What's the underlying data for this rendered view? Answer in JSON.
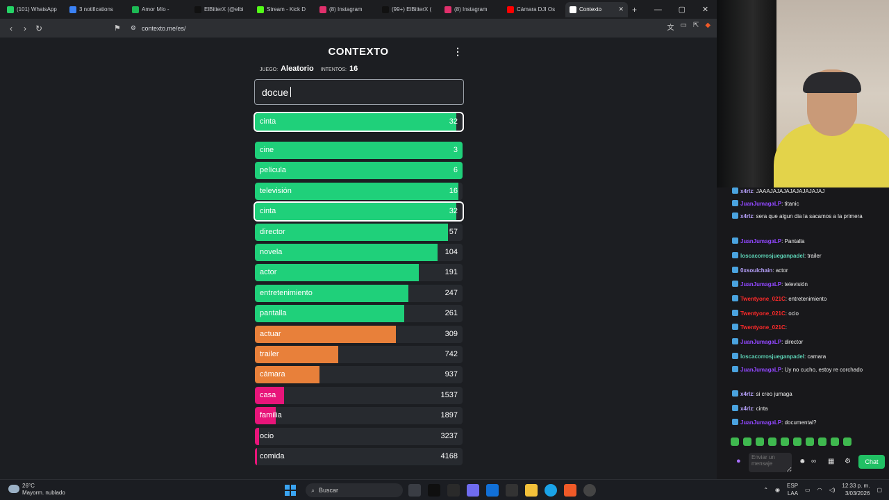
{
  "browser": {
    "tabs": [
      {
        "label": "(101) WhatsApp",
        "color": "#25d366"
      },
      {
        "label": "3 notifications",
        "color": "#3b82f6"
      },
      {
        "label": "Amor Mío -",
        "color": "#1db954"
      },
      {
        "label": "ElBitterX (@elbi",
        "color": "#111111"
      },
      {
        "label": "Stream - Kick D",
        "color": "#53fc18"
      },
      {
        "label": "(8) Instagram",
        "color": "#e1306c"
      },
      {
        "label": "(99+) ElBitterX (",
        "color": "#111111"
      },
      {
        "label": "(8) Instagram",
        "color": "#e1306c"
      },
      {
        "label": "Cámara DJI Os",
        "color": "#ff0000"
      },
      {
        "label": "Contexto",
        "color": "#ffffff",
        "active": true
      }
    ],
    "url": "contexto.me/es/"
  },
  "game": {
    "title": "CONTEXTO",
    "mode_label": "JUEGO:",
    "mode_value": "Aleatorio",
    "attempts_label": "INTENTOS:",
    "attempts_value": "16",
    "input_value": "docue",
    "last_guess": {
      "word": "cinta",
      "rank": "32",
      "fill": 0.97,
      "color": "#1fd07a"
    },
    "guesses": [
      {
        "word": "cine",
        "rank": "3",
        "fill": 1.0,
        "color": "#1fd07a"
      },
      {
        "word": "película",
        "rank": "6",
        "fill": 1.0,
        "color": "#1fd07a"
      },
      {
        "word": "televisión",
        "rank": "16",
        "fill": 0.98,
        "color": "#1fd07a"
      },
      {
        "word": "cinta",
        "rank": "32",
        "fill": 0.97,
        "color": "#1fd07a",
        "highlight": true
      },
      {
        "word": "director",
        "rank": "57",
        "fill": 0.93,
        "color": "#1fd07a"
      },
      {
        "word": "novela",
        "rank": "104",
        "fill": 0.88,
        "color": "#1fd07a"
      },
      {
        "word": "actor",
        "rank": "191",
        "fill": 0.79,
        "color": "#1fd07a"
      },
      {
        "word": "entretenimiento",
        "rank": "247",
        "fill": 0.74,
        "color": "#1fd07a"
      },
      {
        "word": "pantalla",
        "rank": "261",
        "fill": 0.72,
        "color": "#1fd07a"
      },
      {
        "word": "actuar",
        "rank": "309",
        "fill": 0.68,
        "color": "#e8803a"
      },
      {
        "word": "trailer",
        "rank": "742",
        "fill": 0.4,
        "color": "#e8803a"
      },
      {
        "word": "cámara",
        "rank": "937",
        "fill": 0.31,
        "color": "#e8803a"
      },
      {
        "word": "casa",
        "rank": "1537",
        "fill": 0.14,
        "color": "#e8157a"
      },
      {
        "word": "familia",
        "rank": "1897",
        "fill": 0.1,
        "color": "#e8157a"
      },
      {
        "word": "ocio",
        "rank": "3237",
        "fill": 0.02,
        "color": "#e8157a"
      },
      {
        "word": "comida",
        "rank": "4168",
        "fill": 0.01,
        "color": "#e8157a"
      }
    ]
  },
  "chat": {
    "messages": [
      {
        "user": "x4rlz",
        "text": ": JAAAJAJAJAJAJAJAJAJAJ",
        "color": "#b9a3ff"
      },
      {
        "user": "JuanJumagaLP",
        "text": ": titanic",
        "color": "#9147ff"
      },
      {
        "user": "x4rlz",
        "text": ": sera que algun dia la sacamos a la primera",
        "color": "#b9a3ff"
      },
      {
        "user": "JuanJumagaLP",
        "text": ": Pantalla",
        "color": "#9147ff"
      },
      {
        "user": "loscacorrosjueganpadel",
        "text": ": trailer",
        "color": "#5dd3b6"
      },
      {
        "user": "0xsoulchain",
        "text": ": actor",
        "color": "#b9a3ff"
      },
      {
        "user": "JuanJumagaLP",
        "text": ": televisión",
        "color": "#9147ff"
      },
      {
        "user": "Twentyone_021C",
        "text": ": entretenimiento",
        "color": "#ff2a2a"
      },
      {
        "user": "Twentyone_021C",
        "text": ": ocio",
        "color": "#ff2a2a"
      },
      {
        "user": "Twentyone_021C",
        "text": ":",
        "color": "#ff2a2a"
      },
      {
        "user": "JuanJumagaLP",
        "text": ": director",
        "color": "#9147ff"
      },
      {
        "user": "loscacorrosjueganpadel",
        "text": ": camara",
        "color": "#5dd3b6"
      },
      {
        "user": "JuanJumagaLP",
        "text": ": Uy no cucho, estoy re corchado",
        "color": "#9147ff"
      },
      {
        "user": "x4rlz",
        "text": ": si creo jumaga",
        "color": "#b9a3ff"
      },
      {
        "user": "x4rlz",
        "text": ": cinta",
        "color": "#b9a3ff"
      },
      {
        "user": "JuanJumagaLP",
        "text": ": documental?",
        "color": "#9147ff"
      }
    ],
    "input_placeholder": "Enviar un mensaje",
    "send_label": "Chat"
  },
  "taskbar": {
    "temperature": "26°C",
    "weather": "Mayorm. nublado",
    "search_placeholder": "Buscar",
    "lang": "ESP",
    "lang2": "LAA",
    "time": "12:33 p. m.",
    "date": "3/03/2026"
  }
}
